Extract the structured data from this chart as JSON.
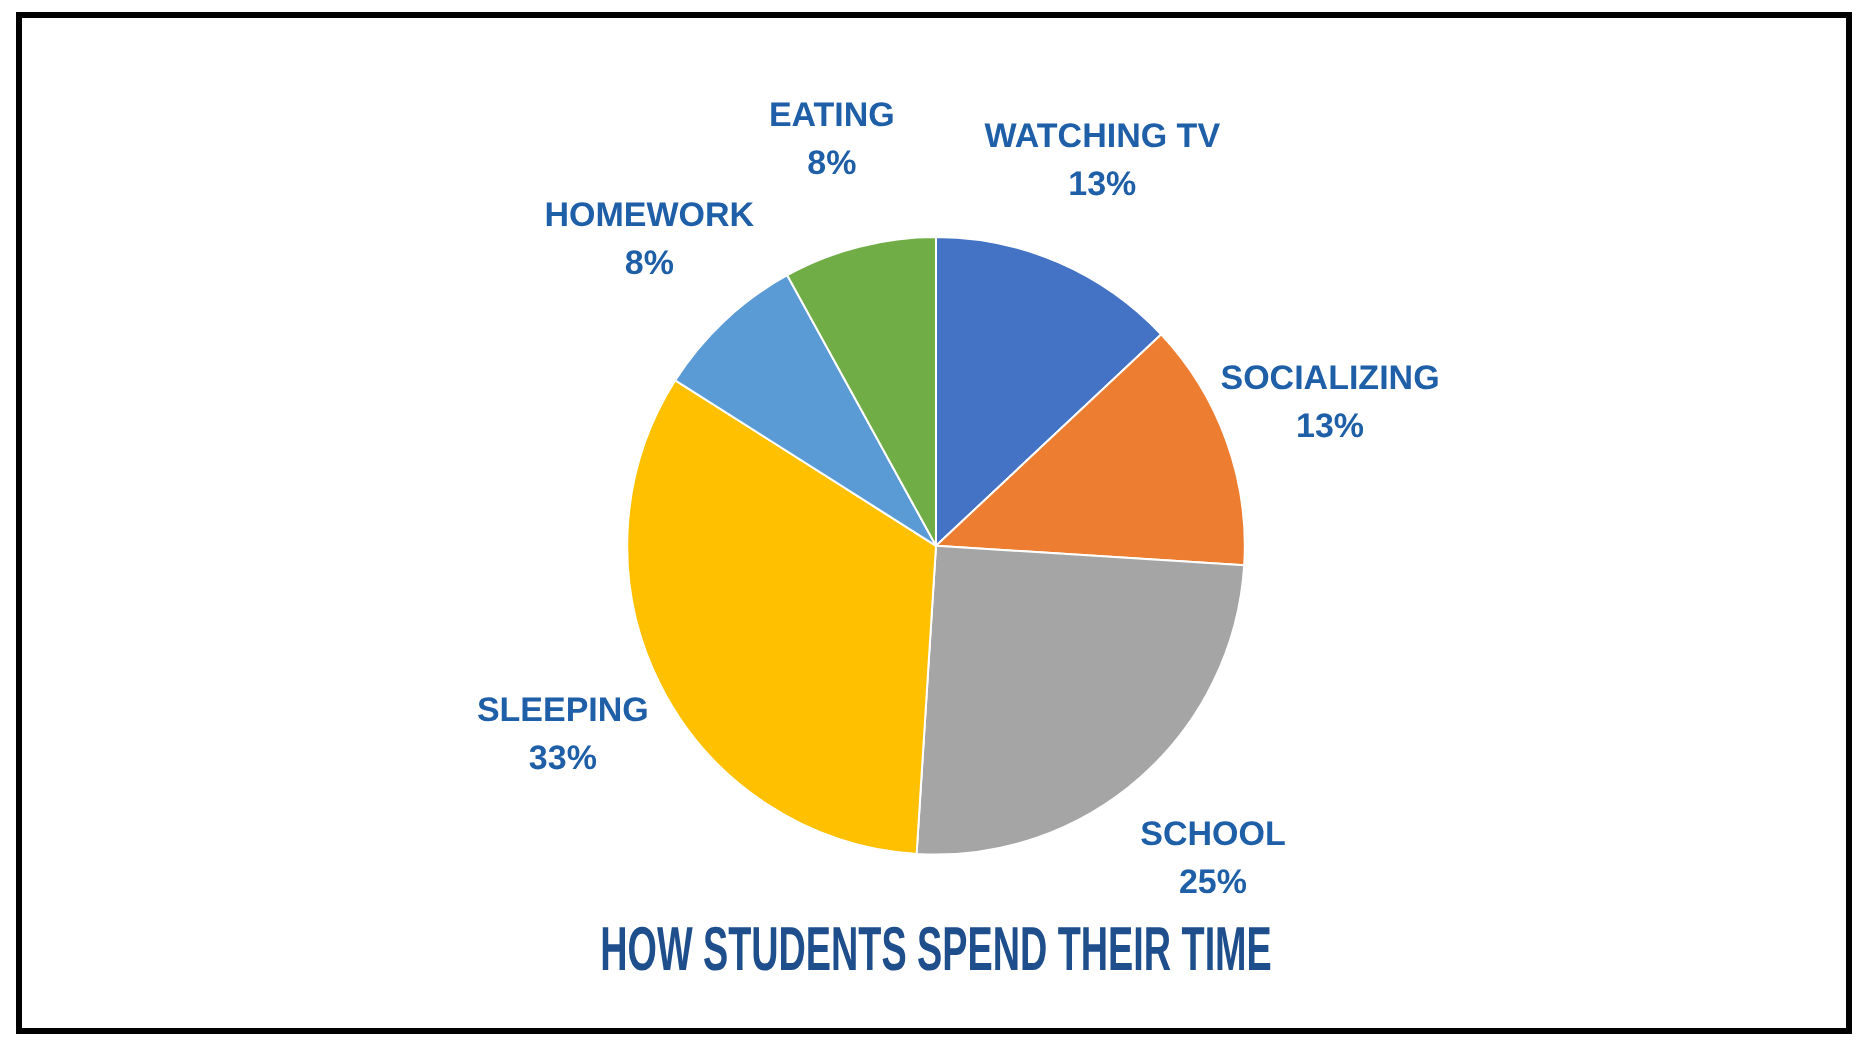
{
  "chart_data": {
    "type": "pie",
    "title": "HOW STUDENTS SPEND THEIR TIME",
    "categories": [
      "WATCHING TV",
      "SOCIALIZING",
      "SCHOOL",
      "SLEEPING",
      "HOMEWORK",
      "EATING"
    ],
    "values": [
      13,
      13,
      25,
      33,
      8,
      8
    ],
    "value_labels": [
      "13%",
      "13%",
      "25%",
      "33%",
      "8%",
      "8%"
    ],
    "colors": [
      "#4472c4",
      "#ed7d31",
      "#a5a5a5",
      "#ffc000",
      "#5b9bd5",
      "#70ad47"
    ],
    "legend": false
  }
}
